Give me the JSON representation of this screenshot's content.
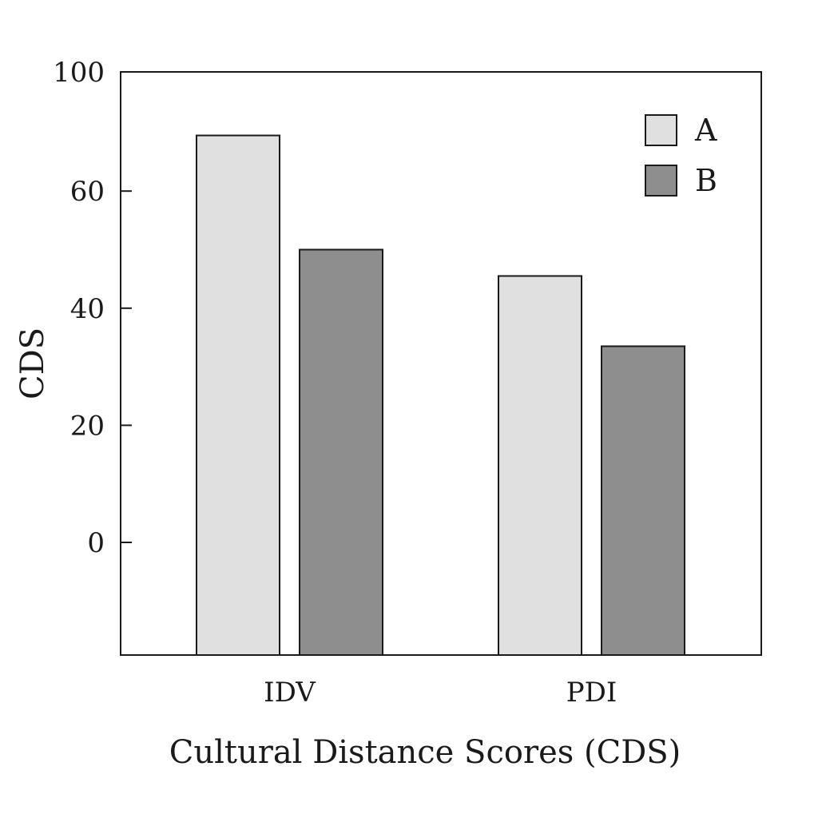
{
  "chart_data": {
    "type": "bar",
    "categories": [
      "IDV",
      "PDI"
    ],
    "series": [
      {
        "name": "A",
        "values": [
          69.5,
          45.5
        ],
        "color": "#e0e0e0"
      },
      {
        "name": "B",
        "values": [
          50,
          33.5
        ],
        "color": "#8e8e8e"
      }
    ],
    "xlabel": "Cultural Distance Scores (CDS)",
    "ylabel": "CDS",
    "yticks": [
      0,
      20,
      40,
      60,
      100
    ],
    "ylim": [
      -19,
      80
    ],
    "y_axis_top_label": "100",
    "grid": false,
    "legend": "top-right"
  }
}
